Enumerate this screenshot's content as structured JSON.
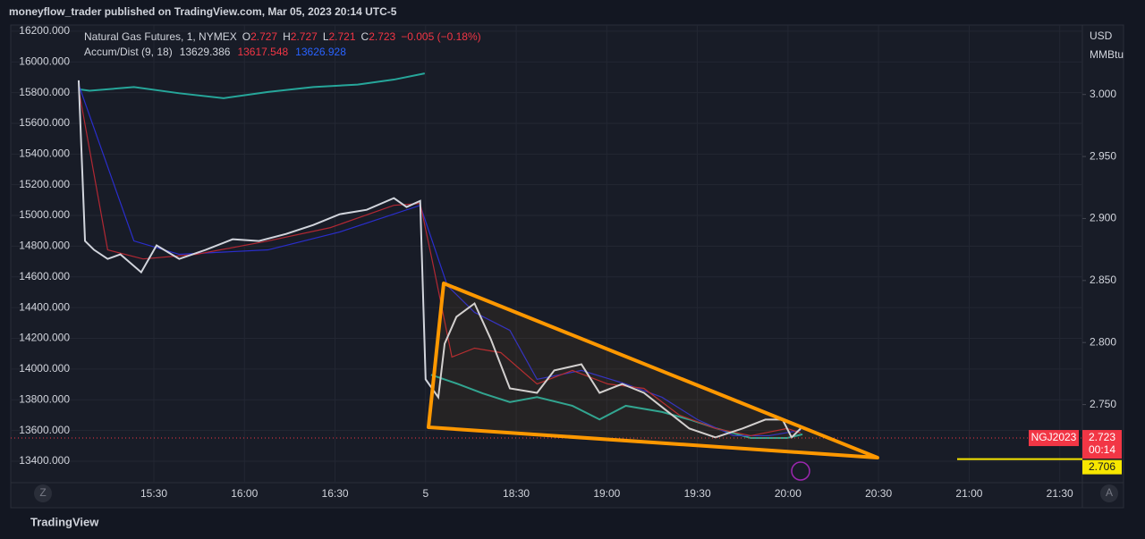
{
  "header": "moneyflow_trader published on TradingView.com, Mar 05, 2023 20:14 UTC-5",
  "footer": "TradingView",
  "buttons": [
    "Z",
    "A"
  ],
  "chart_data": {
    "type": "line",
    "legend": {
      "symbol": "Natural Gas Futures, 1, NYMEX",
      "ohlc": [
        {
          "key": "O",
          "value": 2.727
        },
        {
          "key": "H",
          "value": 2.727
        },
        {
          "key": "L",
          "value": 2.721
        },
        {
          "key": "C",
          "value": 2.723
        }
      ],
      "change": "−0.005 (−0.18%)",
      "indicator": "Accum/Dist (9, 18)",
      "indicator_values": [
        {
          "value": 13629.386,
          "color": "#d1d4dc"
        },
        {
          "value": 13617.548,
          "color": "#f23645"
        },
        {
          "value": 13626.928,
          "color": "#2962ff"
        }
      ]
    },
    "y2_unit": [
      "USD",
      "MMBtu"
    ],
    "xlim": [
      -1.58,
      10.25
    ],
    "xticks": [
      {
        "value": 0,
        "label": "15:30"
      },
      {
        "value": 1,
        "label": "16:00"
      },
      {
        "value": 2,
        "label": "16:30"
      },
      {
        "value": 3,
        "label": "5"
      },
      {
        "value": 4,
        "label": "18:30"
      },
      {
        "value": 5,
        "label": "19:00"
      },
      {
        "value": 6,
        "label": "19:30"
      },
      {
        "value": 7,
        "label": "20:00"
      },
      {
        "value": 8,
        "label": "20:30"
      },
      {
        "value": 9,
        "label": "21:00"
      },
      {
        "value": 10,
        "label": "21:30"
      }
    ],
    "ylim": [
      13260,
      16240
    ],
    "yticks": [
      {
        "value": 13400,
        "label": "13400.000"
      },
      {
        "value": 13600,
        "label": "13600.000"
      },
      {
        "value": 13800,
        "label": "13800.000"
      },
      {
        "value": 14000,
        "label": "14000.000"
      },
      {
        "value": 14200,
        "label": "14200.000"
      },
      {
        "value": 14400,
        "label": "14400.000"
      },
      {
        "value": 14600,
        "label": "14600.000"
      },
      {
        "value": 14800,
        "label": "14800.000"
      },
      {
        "value": 15000,
        "label": "15000.000"
      },
      {
        "value": 15200,
        "label": "15200.000"
      },
      {
        "value": 15400,
        "label": "15400.000"
      },
      {
        "value": 15600,
        "label": "15600.000"
      },
      {
        "value": 15800,
        "label": "15800.000"
      },
      {
        "value": 16000,
        "label": "16000.000"
      },
      {
        "value": 16200,
        "label": "16200.000"
      }
    ],
    "y2lim": [
      2.687,
      3.056
    ],
    "y2ticks": [
      {
        "value": 2.75,
        "label": "2.750"
      },
      {
        "value": 2.8,
        "label": "2.800"
      },
      {
        "value": 2.85,
        "label": "2.850"
      },
      {
        "value": 2.9,
        "label": "2.900"
      },
      {
        "value": 2.95,
        "label": "2.950"
      },
      {
        "value": 3,
        "label": "3.000"
      }
    ],
    "series": [
      {
        "color": "#26a69a",
        "axis": "y2",
        "x": [
          -0.81,
          -0.71,
          -0.22,
          0.28,
          0.77,
          1.26,
          1.76,
          2.25,
          2.65,
          2.99,
          3.0,
          3.06,
          3.34,
          3.63,
          3.93,
          4.23,
          4.62,
          4.92,
          5.21,
          5.61,
          5.91,
          6.2,
          6.59,
          6.99,
          7.16
        ],
        "values": [
          3.004,
          3.003,
          3.006,
          3.001,
          2.997,
          3.002,
          3.006,
          3.008,
          3.012,
          3.017,
          null,
          2.774,
          2.767,
          2.759,
          2.752,
          2.756,
          2.749,
          2.738,
          2.749,
          2.744,
          2.738,
          2.731,
          2.723,
          2.723,
          2.726
        ]
      },
      {
        "color": "#2a2ecd",
        "x": [
          -0.83,
          -0.22,
          0.28,
          1.26,
          2.05,
          2.94,
          3.24,
          3.54,
          3.93,
          4.23,
          4.72,
          5.21,
          5.61,
          6.0,
          6.4,
          6.79,
          7.14
        ],
        "values": [
          15851,
          14834,
          14747,
          14776,
          14892,
          15066,
          14543,
          14369,
          14252,
          13933,
          13991,
          13903,
          13816,
          13671,
          13566,
          13566,
          13601
        ]
      },
      {
        "color": "#b22833",
        "x": [
          -0.83,
          -0.51,
          -0.12,
          0.47,
          1.26,
          1.95,
          2.65,
          2.94,
          3.09,
          3.29,
          3.54,
          3.83,
          4.23,
          4.62,
          5.01,
          5.41,
          5.8,
          6.2,
          6.59,
          6.99,
          7.14
        ],
        "values": [
          15822,
          14776,
          14717,
          14747,
          14834,
          14921,
          15066,
          15078,
          14659,
          14078,
          14136,
          14107,
          13903,
          13991,
          13903,
          13874,
          13700,
          13613,
          13566,
          13613,
          13584
        ]
      },
      {
        "color": "#d1d4dc",
        "x": [
          -0.83,
          -0.76,
          -0.66,
          -0.51,
          -0.37,
          -0.14,
          0.03,
          0.28,
          0.57,
          0.87,
          1.16,
          1.46,
          1.76,
          2.05,
          2.35,
          2.65,
          2.79,
          2.94,
          3.0,
          3.14,
          3.21,
          3.34,
          3.54,
          3.72,
          3.93,
          4.23,
          4.42,
          4.72,
          4.92,
          5.17,
          5.41,
          5.66,
          5.91,
          6.2,
          6.5,
          6.75,
          6.94,
          7.04,
          7.14
        ],
        "values": [
          15880,
          14834,
          14776,
          14717,
          14747,
          14630,
          14805,
          14717,
          14776,
          14845,
          14834,
          14880,
          14938,
          15008,
          15037,
          15113,
          15055,
          15095,
          13933,
          13816,
          14165,
          14340,
          14427,
          14194,
          13874,
          13845,
          13991,
          14031,
          13845,
          13903,
          13845,
          13729,
          13613,
          13555,
          13613,
          13671,
          13671,
          13555,
          13613
        ]
      }
    ],
    "price_marks": [
      {
        "value": 2.723,
        "label": "NGJ2023",
        "countdown": "00:14",
        "color": "#f23645"
      },
      {
        "value": 2.706,
        "color": "#f7e600"
      }
    ]
  }
}
